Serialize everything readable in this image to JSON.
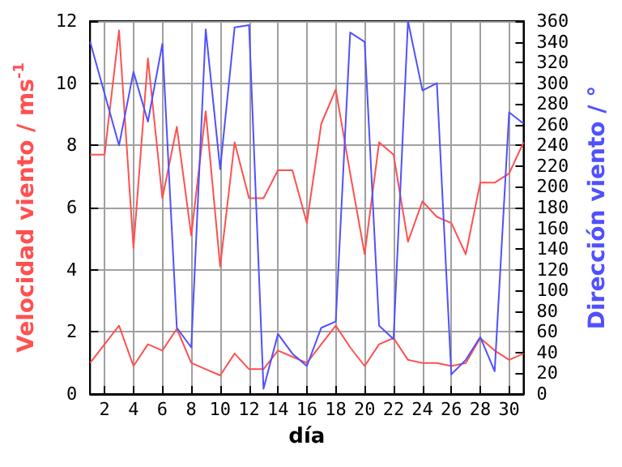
{
  "chart_data": {
    "type": "line",
    "xlabel": "día",
    "ylabel": "Velocidad viento / ms$^{-1}$",
    "y2label": "Dirección viento / °",
    "x": [
      1,
      2,
      3,
      4,
      5,
      6,
      7,
      8,
      9,
      10,
      11,
      12,
      13,
      14,
      15,
      16,
      17,
      18,
      19,
      20,
      21,
      22,
      23,
      24,
      25,
      26,
      27,
      28,
      29,
      30,
      31
    ],
    "xlim": [
      1,
      31
    ],
    "xticks": [
      2,
      4,
      6,
      8,
      10,
      12,
      14,
      16,
      18,
      20,
      22,
      24,
      26,
      28,
      30
    ],
    "ylim": [
      0,
      12
    ],
    "yticks": [
      0,
      2,
      4,
      6,
      8,
      10,
      12
    ],
    "y2lim": [
      0,
      360
    ],
    "y2ticks": [
      0,
      20,
      40,
      60,
      80,
      100,
      120,
      140,
      160,
      180,
      200,
      220,
      240,
      260,
      280,
      300,
      320,
      340,
      360
    ],
    "grid": true,
    "marker": "none",
    "line_style": "solid",
    "series": [
      {
        "color": "#ff5050",
        "values": [
          7.7,
          7.7,
          11.7,
          4.7,
          10.8,
          6.3,
          8.6,
          5.1,
          9.1,
          4.1,
          8.1,
          6.3,
          6.3,
          7.2,
          7.2,
          5.5,
          8.7,
          9.8,
          7.1,
          4.5,
          8.1,
          7.7,
          4.9,
          6.2,
          5.7,
          5.5,
          4.5,
          6.8,
          6.8,
          7.1,
          8.1
        ]
      },
      {
        "color": "#ff5050",
        "values": [
          1.0,
          1.6,
          2.2,
          0.9,
          1.6,
          1.4,
          2.1,
          1.0,
          0.8,
          0.6,
          1.3,
          0.8,
          0.8,
          1.4,
          1.2,
          1.0,
          1.6,
          2.2,
          1.5,
          0.9,
          1.6,
          1.8,
          1.1,
          1.0,
          1.0,
          0.9,
          1.0,
          1.8,
          1.4,
          1.1,
          1.3
        ]
      },
      {
        "color": "#5050ff",
        "axis": "y2",
        "values": [
          340,
          290,
          240,
          311,
          263,
          338,
          64,
          45,
          352,
          217,
          354,
          356,
          5,
          58,
          39,
          27,
          64,
          70,
          349,
          340,
          66,
          53,
          360,
          293,
          300,
          19,
          33,
          55,
          22,
          272,
          261
        ]
      }
    ]
  }
}
